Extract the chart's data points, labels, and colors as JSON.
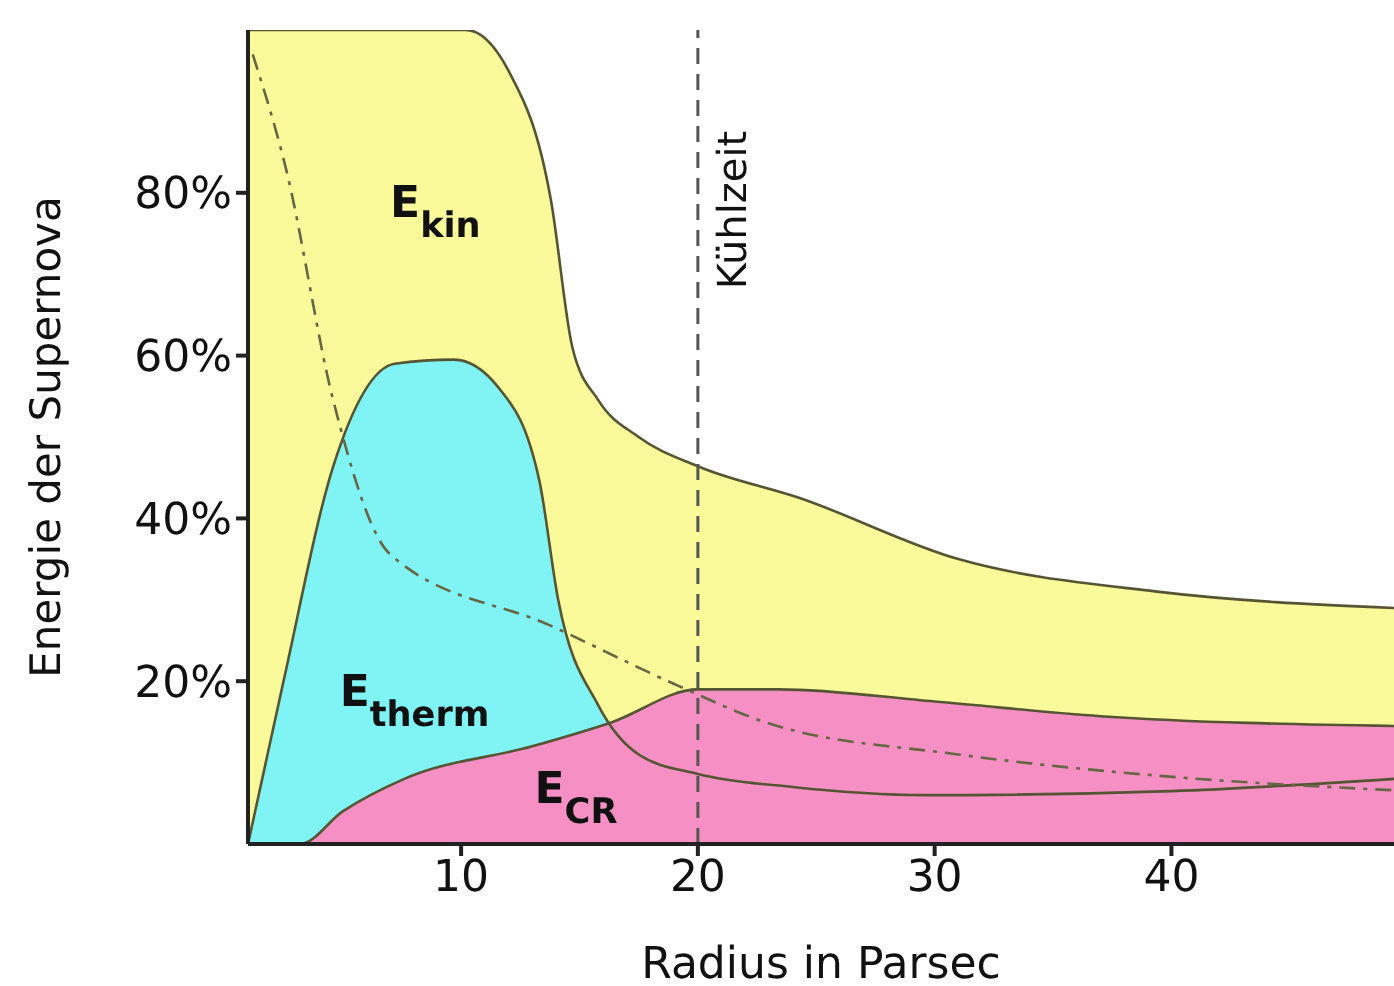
{
  "chart_data": {
    "type": "area",
    "xlabel": "Radius in Parsec",
    "ylabel": "Energie der Supernova",
    "xlim": [
      1,
      49.4
    ],
    "xticks": [
      10,
      20,
      30,
      40
    ],
    "ylim": [
      0,
      100
    ],
    "yticks": [
      {
        "value": 20,
        "label": "20%"
      },
      {
        "value": 40,
        "label": "40%"
      },
      {
        "value": 60,
        "label": "60%"
      },
      {
        "value": 80,
        "label": "80%"
      }
    ],
    "series": [
      {
        "name": "E$_{kin}$",
        "color": "#fafa9a",
        "x": [
          1,
          10.2,
          12,
          13.8,
          14.7,
          15.8,
          17.5,
          20,
          24.3,
          31,
          39.4,
          49.4
        ],
        "values": [
          100,
          100,
          95,
          79,
          61,
          54.5,
          50,
          46.4,
          42.5,
          35,
          31,
          29
        ]
      },
      {
        "name": "E$_{therm}$",
        "color": "#80f4f4",
        "x": [
          1,
          2.5,
          4.6,
          7.2,
          9.7,
          11.6,
          13.3,
          14.1,
          15.8,
          17.5,
          20,
          24,
          29.6,
          40,
          49.4
        ],
        "values": [
          0,
          20,
          46.4,
          59,
          59.5,
          56,
          44.7,
          30,
          17,
          11,
          8.6,
          7,
          6,
          6.5,
          8
        ]
      },
      {
        "name": "E$_{CR}$",
        "color": "#f690c4",
        "x": [
          1,
          3.2,
          5,
          7.6,
          13,
          16.4,
          20,
          23.4,
          30,
          37,
          49.4
        ],
        "values": [
          0,
          0,
          4,
          8,
          12,
          15,
          19,
          19,
          17.5,
          15.7,
          14.5
        ]
      },
      {
        "type": "line",
        "color": "#666644",
        "line_style": "dashdot",
        "x": [
          1.2,
          2.6,
          4.6,
          7,
          13.8,
          19.2,
          22.8,
          31,
          39.4,
          49.4
        ],
        "values": [
          97,
          83,
          54.5,
          35.6,
          26.8,
          19.4,
          15,
          11,
          8.4,
          6.6
        ]
      }
    ],
    "ref_lines": [
      {
        "axis": "x",
        "value": 20,
        "label": "Kühlzeit",
        "line_style": "dashed",
        "color": "#555555"
      }
    ]
  }
}
